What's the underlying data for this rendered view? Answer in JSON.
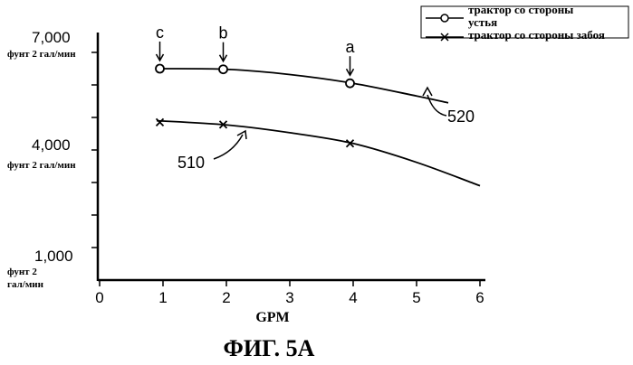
{
  "chart_data": {
    "type": "line",
    "title": "",
    "caption": "ФИГ. 5А",
    "xlabel": "GPM",
    "x_ticks": [
      "0",
      "1",
      "2",
      "3",
      "4",
      "5",
      "6"
    ],
    "xlim": [
      0,
      6
    ],
    "y_ticks": [
      {
        "value": 1000,
        "label": "1,000",
        "unit": "фунт 2 гал/мин"
      },
      {
        "value": 4000,
        "label": "4,000",
        "unit": "фунт 2 гал/мин"
      },
      {
        "value": 7000,
        "label": "7,000",
        "unit": "фунт 2 гал/мин"
      }
    ],
    "ylim": [
      0,
      7500
    ],
    "grid": false,
    "legend_position": "top-right",
    "series": [
      {
        "name": "трактор со стороны устья",
        "marker": "circle",
        "reference": "520",
        "curve": {
          "x": [
            0.9,
            2,
            3,
            4,
            5,
            5.5
          ],
          "y": [
            6500,
            6480,
            6320,
            6050,
            5660,
            5450
          ]
        },
        "points": {
          "x": [
            0.95,
            1.95,
            3.95
          ],
          "y": [
            6500,
            6480,
            6050
          ]
        }
      },
      {
        "name": "трактор со стороны забоя",
        "marker": "x",
        "reference": "510",
        "curve": {
          "x": [
            0.9,
            2,
            3,
            4,
            5,
            6
          ],
          "y": [
            4900,
            4770,
            4530,
            4200,
            3620,
            2900
          ]
        },
        "points": {
          "x": [
            0.95,
            1.95,
            3.95
          ],
          "y": [
            4850,
            4780,
            4200
          ]
        }
      }
    ],
    "annotations": [
      {
        "label": "c",
        "x": 0.95
      },
      {
        "label": "b",
        "x": 1.95
      },
      {
        "label": "a",
        "x": 3.95
      }
    ]
  }
}
